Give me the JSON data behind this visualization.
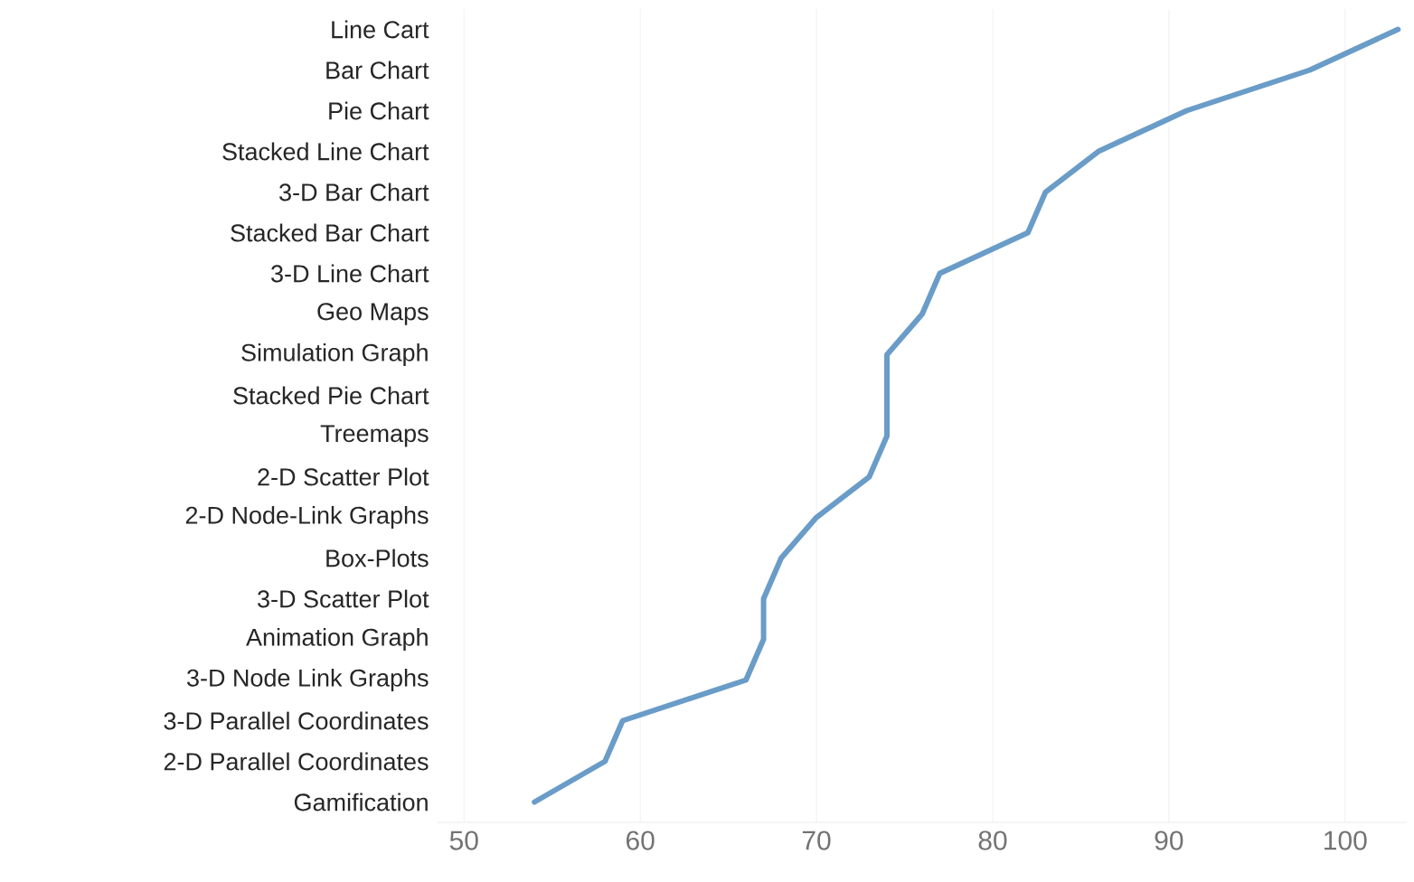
{
  "chart_data": {
    "type": "line",
    "orientation": "horizontal",
    "categories": [
      "Line Cart",
      "Bar Chart",
      "Pie Chart",
      "Stacked Line Chart",
      "3-D Bar Chart",
      "Stacked Bar Chart",
      "3-D Line Chart",
      "Geo Maps",
      "Simulation Graph",
      "Stacked Pie Chart",
      "Treemaps",
      "2-D Scatter Plot",
      "2-D Node-Link Graphs",
      "Box-Plots",
      "3-D Scatter Plot",
      "Animation Graph",
      "3-D Node Link Graphs",
      "3-D Parallel Coordinates",
      "2-D Parallel Coordinates",
      "Gamification"
    ],
    "series": [
      {
        "color": "#6a9cc8",
        "values": [
          103,
          98,
          91,
          86,
          83,
          82,
          77,
          76,
          74,
          74,
          74,
          73,
          70,
          68,
          67,
          67,
          66,
          59,
          58,
          54
        ]
      }
    ],
    "xlim": [
      48.5,
      103.5
    ],
    "xticks": [
      50,
      60,
      70,
      80,
      90,
      100
    ],
    "grid": "x",
    "marker": "none",
    "line_style": "solid"
  }
}
